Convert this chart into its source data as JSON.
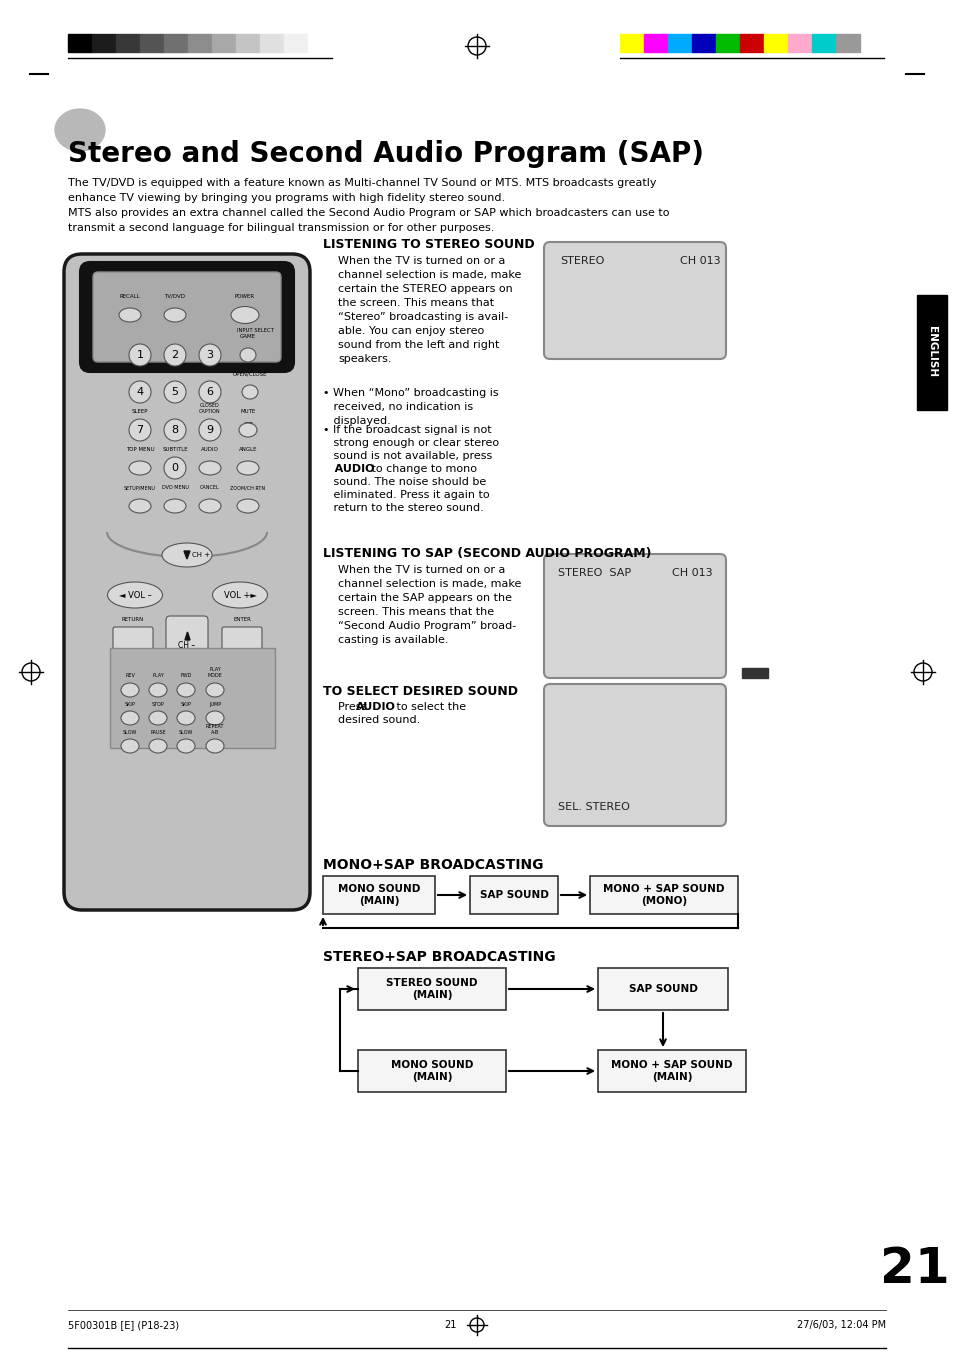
{
  "bg_color": "#ffffff",
  "page_number": "21",
  "title_text": "Stereo and Second Audio Program (SAP)",
  "intro_line1": "The TV/DVD is equipped with a feature known as Multi-channel TV Sound or MTS. MTS broadcasts greatly",
  "intro_line2": "enhance TV viewing by bringing you programs with high fidelity stereo sound.",
  "intro_line3": "MTS also provides an extra channel called the Second Audio Program or SAP which broadcasters can use to",
  "intro_line4": "transmit a second language for bilingual transmission or for other purposes.",
  "section1_title": "LISTENING TO STEREO SOUND",
  "section1_body": "When the TV is turned on or a\nchannel selection is made, make\ncertain the STEREO appears on\nthe screen. This means that\n“Stereo” broadcasting is avail-\nable. You can enjoy stereo\nsound from the left and right\nspeakers.",
  "bullet1": "• When “Mono” broadcasting is\n   received, no indication is\n   displayed.",
  "bullet2a": "• If the broadcast signal is not",
  "bullet2b": "   strong enough or clear stereo",
  "bullet2c": "   sound is not available, press",
  "bullet2d_bold": "   AUDIO",
  "bullet2d_rest": " to change to mono",
  "bullet2e": "   sound. The noise should be",
  "bullet2f": "   eliminated. Press it again to",
  "bullet2g": "   return to the stereo sound.",
  "section2_title": "LISTENING TO SAP (SECOND AUDIO PROGRAM)",
  "section2_body": "When the TV is turned on or a\nchannel selection is made, make\ncertain the SAP appears on the\nscreen. This means that the\n“Second Audio Program” broad-\ncasting is available.",
  "section3_title": "TO SELECT DESIRED SOUND",
  "section3_body1": "Press ",
  "section3_bold": "AUDIO",
  "section3_body2": " to select the",
  "section3_body3": "desired sound.",
  "screen1_line1": "STEREO",
  "screen1_line2": "CH 013",
  "screen2_line1": "STEREO  SAP",
  "screen2_line2": "CH 013",
  "screen3_bottom": "SEL. STEREO",
  "mono_sap_title": "MONO+SAP BROADCASTING",
  "mono_box1": "MONO SOUND\n(MAIN)",
  "mono_box2": "SAP SOUND",
  "mono_box3": "MONO + SAP SOUND\n(MONO)",
  "stereo_sap_title": "STEREO+SAP BROADCASTING",
  "stereo_box_tl": "STEREO SOUND\n(MAIN)",
  "stereo_box_tr": "SAP SOUND",
  "stereo_box_bl": "MONO SOUND\n(MAIN)",
  "stereo_box_br": "MONO + SAP SOUND\n(MAIN)",
  "english_tab": "ENGLISH",
  "footer_left": "5F00301B [E] (P18-23)",
  "footer_mid": "21",
  "footer_right": "27/6/03, 12:04 PM",
  "grayscale_bars": [
    "#000000",
    "#1c1c1c",
    "#383838",
    "#545454",
    "#707070",
    "#8c8c8c",
    "#a8a8a8",
    "#c4c4c4",
    "#e0e0e0",
    "#f0f0f0",
    "#ffffff"
  ],
  "color_bars": [
    "#ffff00",
    "#ff00ff",
    "#00aaff",
    "#0000bb",
    "#00bb00",
    "#cc0000",
    "#ffff00",
    "#ffaacc",
    "#00cccc",
    "#999999"
  ]
}
